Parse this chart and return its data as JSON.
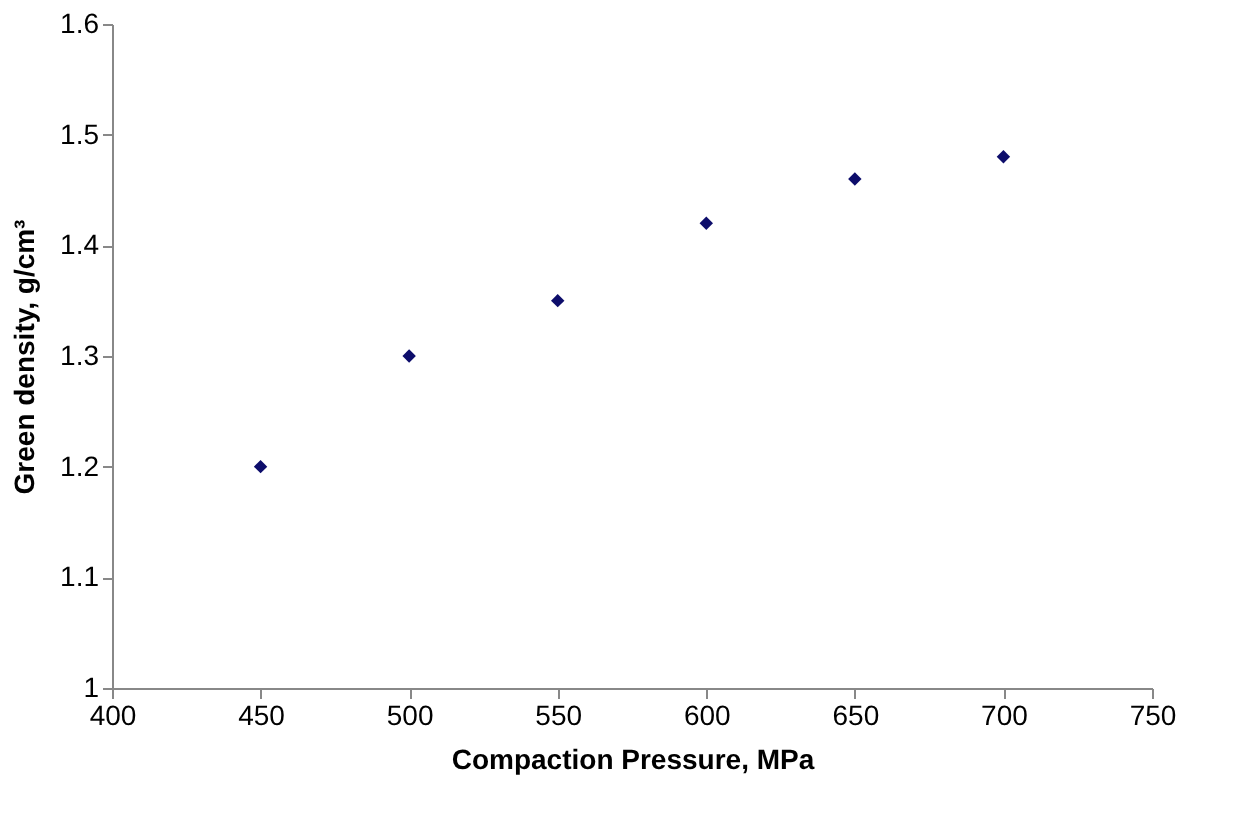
{
  "chart_data": {
    "type": "scatter",
    "xlabel": "Compaction Pressure, MPa",
    "ylabel": "Green density, g/cm³",
    "x": [
      450,
      500,
      550,
      600,
      650,
      700
    ],
    "series": [
      {
        "color": "#0d0d6b",
        "values": [
          1.2,
          1.3,
          1.35,
          1.42,
          1.46,
          1.48
        ]
      }
    ],
    "xlim": [
      400,
      750
    ],
    "xticks": [
      400,
      450,
      500,
      550,
      600,
      650,
      700,
      750
    ],
    "ylim": [
      1,
      1.6
    ],
    "yticks": [
      1,
      1.1,
      1.2,
      1.3,
      1.4,
      1.5,
      1.6
    ],
    "marker": "diamond",
    "grid": false,
    "legend": false
  }
}
